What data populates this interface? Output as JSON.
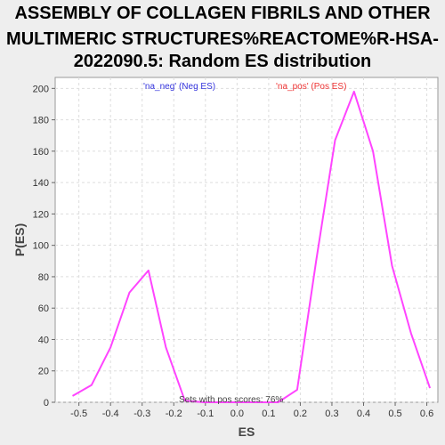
{
  "title_lines": [
    "ASSEMBLY OF COLLAGEN FIBRILS AND OTHER",
    "MULTIMERIC STRUCTURES%REACTOME%R-HSA-",
    "2022090.5: Random ES distribution"
  ],
  "colors": {
    "background": "#eeeeee",
    "plot_background": "#ffffff",
    "line": "#ff44ff",
    "neg_label": "#3333dd",
    "pos_label": "#ee3333",
    "grid": "#dddddd"
  },
  "chart_data": {
    "type": "line",
    "title": "ASSEMBLY OF COLLAGEN FIBRILS AND OTHER MULTIMERIC STRUCTURES%REACTOME%R-HSA-2022090.5: Random ES distribution",
    "xlabel": "ES",
    "ylabel": "P(ES)",
    "xlim": [
      -0.575,
      0.635
    ],
    "ylim": [
      0,
      207
    ],
    "x_ticks": [
      -0.5,
      -0.4,
      -0.3,
      -0.2,
      -0.1,
      0.0,
      0.1,
      0.2,
      0.3,
      0.4,
      0.5,
      0.6
    ],
    "x_tick_labels": [
      "-0.5",
      "-0.4",
      "-0.3",
      "-0.2",
      "-0.1",
      "0.0",
      "0.1",
      "0.2",
      "0.3",
      "0.4",
      "0.5",
      "0.6"
    ],
    "y_ticks": [
      0,
      20,
      40,
      60,
      80,
      100,
      120,
      140,
      160,
      180,
      200
    ],
    "y_tick_labels": [
      "0",
      "20",
      "40",
      "60",
      "80",
      "100",
      "120",
      "140",
      "160",
      "180",
      "200"
    ],
    "grid": true,
    "series": [
      {
        "x": [
          -0.52,
          -0.46,
          -0.4,
          -0.34,
          -0.28,
          -0.225,
          -0.165,
          -0.105,
          -0.045,
          0.015,
          0.075,
          0.13,
          0.19,
          0.25,
          0.31,
          0.37,
          0.43,
          0.49,
          0.55,
          0.61
        ],
        "y": [
          4,
          11,
          35,
          70,
          84,
          35,
          1,
          0,
          0,
          0,
          0,
          0,
          8,
          90,
          167,
          198,
          160,
          87,
          44,
          9
        ]
      }
    ],
    "annotations": [
      {
        "text": "'na_neg' (Neg ES)",
        "color": "#3333dd"
      },
      {
        "text": "'na_pos' (Pos ES)",
        "color": "#ee3333"
      },
      {
        "text": "Sets with pos scores: 76%"
      }
    ]
  }
}
